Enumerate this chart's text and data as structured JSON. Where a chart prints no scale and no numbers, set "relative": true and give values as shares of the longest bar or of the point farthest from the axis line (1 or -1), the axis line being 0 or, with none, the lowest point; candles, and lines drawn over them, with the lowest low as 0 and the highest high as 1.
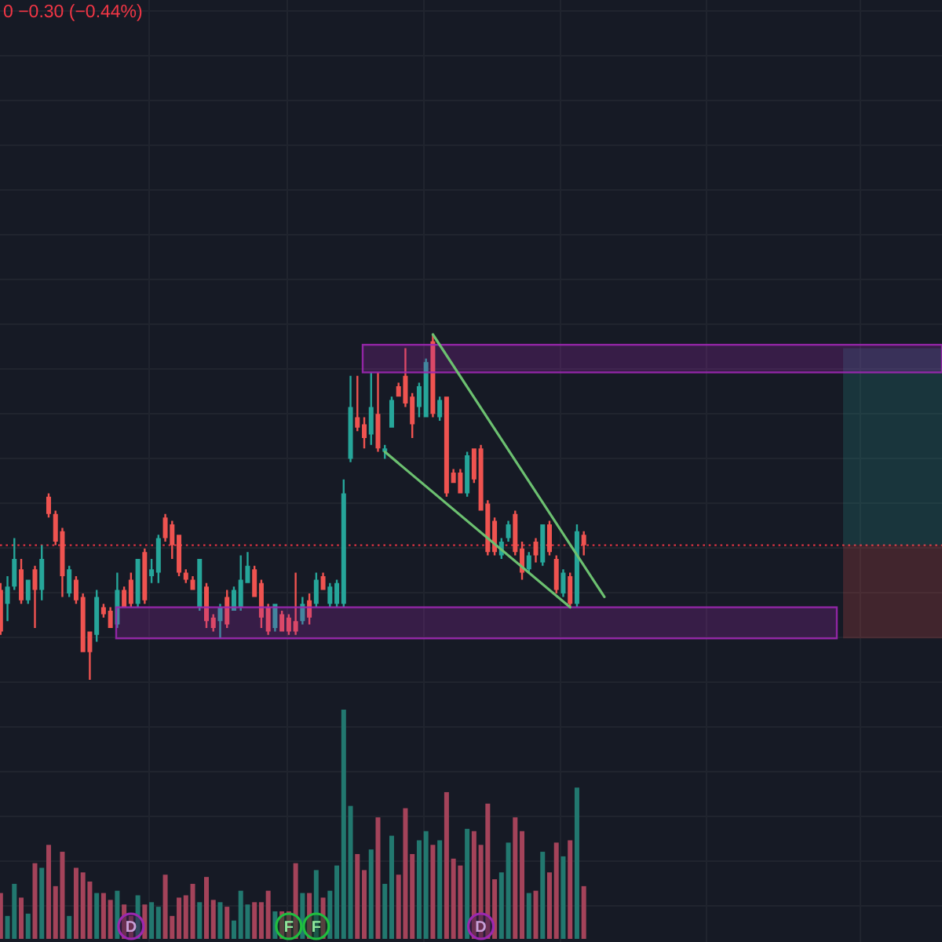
{
  "chart_data": [
    {
      "type": "candlestick",
      "title": "0 −0.30 (−0.44%)",
      "relative": true,
      "grid": true,
      "categories": [
        null,
        null,
        null,
        null,
        null,
        null,
        null,
        null,
        null,
        null,
        null,
        null,
        null,
        null,
        null,
        null,
        null,
        null,
        null,
        null,
        null,
        null,
        null,
        null,
        null,
        null,
        null,
        null,
        null,
        null,
        null,
        null,
        null,
        null,
        null,
        null,
        null,
        null,
        null,
        null,
        null,
        null,
        null,
        null,
        null,
        null,
        null,
        null,
        null,
        null,
        null,
        null,
        null,
        null,
        null,
        null,
        null,
        null,
        null,
        null,
        null,
        null,
        null,
        null,
        null,
        null,
        null,
        null,
        null,
        null,
        null,
        null,
        null,
        null,
        null,
        null,
        null,
        null,
        null,
        null,
        null,
        null,
        null,
        null,
        null,
        null,
        null,
        null,
        null,
        null,
        null,
        null,
        null,
        null,
        null,
        null,
        null,
        null,
        null,
        null,
        null,
        null,
        null,
        null,
        null,
        null,
        null,
        null,
        null,
        null,
        null,
        null,
        null,
        null,
        null,
        null,
        null,
        null,
        null,
        null,
        null,
        null,
        null,
        null,
        null,
        null,
        null,
        null,
        null,
        null,
        null,
        null,
        null,
        null,
        null,
        null,
        null,
        null
      ],
      "ohlc": [
        [
          0.26,
          0.28,
          0.13,
          0.14
        ],
        [
          0.22,
          0.3,
          0.17,
          0.27
        ],
        [
          0.27,
          0.41,
          0.26,
          0.35
        ],
        [
          0.32,
          0.35,
          0.22,
          0.23
        ],
        [
          0.23,
          0.29,
          0.22,
          0.29
        ],
        [
          0.32,
          0.33,
          0.15,
          0.26
        ],
        [
          0.26,
          0.39,
          0.23,
          0.35
        ],
        [
          0.53,
          0.54,
          0.47,
          0.48
        ],
        [
          0.48,
          0.49,
          0.39,
          0.4
        ],
        [
          0.43,
          0.44,
          0.24,
          0.3
        ],
        [
          0.25,
          0.33,
          0.24,
          0.32
        ],
        [
          0.29,
          0.3,
          0.22,
          0.23
        ],
        [
          0.24,
          0.25,
          0.08,
          0.08
        ],
        [
          0.14,
          0.14,
          0,
          0.08
        ],
        [
          0.13,
          0.26,
          0.11,
          0.24
        ],
        [
          0.21,
          0.22,
          0.18,
          0.19
        ],
        [
          0.2,
          0.21,
          0.15,
          0.15
        ],
        [
          0.16,
          0.31,
          0.15,
          0.26
        ],
        [
          0.26,
          0.27,
          0.21,
          0.21
        ],
        [
          0.29,
          0.31,
          0.21,
          0.22
        ],
        [
          0.22,
          0.35,
          0.21,
          0.35
        ],
        [
          0.37,
          0.38,
          0.22,
          0.23
        ],
        [
          0.3,
          0.35,
          0.28,
          0.32
        ],
        [
          0.31,
          0.42,
          0.28,
          0.41
        ],
        [
          0.47,
          0.48,
          0.4,
          0.41
        ],
        [
          0.45,
          0.46,
          0.35,
          0.39
        ],
        [
          0.42,
          0.42,
          0.3,
          0.31
        ],
        [
          0.31,
          0.32,
          0.28,
          0.29
        ],
        [
          0.29,
          0.3,
          0.26,
          0.26
        ],
        [
          0.21,
          0.35,
          0.2,
          0.35
        ],
        [
          0.27,
          0.28,
          0.15,
          0.17
        ],
        [
          0.18,
          0.19,
          0.14,
          0.15
        ],
        [
          0.17,
          0.22,
          0.12,
          0.21
        ],
        [
          0.24,
          0.26,
          0.15,
          0.16
        ],
        [
          0.2,
          0.27,
          0.2,
          0.26
        ],
        [
          0.21,
          0.36,
          0.2,
          0.29
        ],
        [
          0.28,
          0.37,
          0.28,
          0.33
        ],
        [
          0.32,
          0.33,
          0.24,
          0.24
        ],
        [
          0.28,
          0.29,
          0.15,
          0.18
        ],
        [
          0.21,
          0.22,
          0.13,
          0.14
        ],
        [
          0.15,
          0.22,
          0.14,
          0.22
        ],
        [
          0.19,
          0.2,
          0.14,
          0.14
        ],
        [
          0.18,
          0.19,
          0.13,
          0.14
        ],
        [
          0.17,
          0.31,
          0.13,
          0.14
        ],
        [
          0.17,
          0.24,
          0.16,
          0.22
        ],
        [
          0.23,
          0.25,
          0.16,
          0.18
        ],
        [
          0.22,
          0.31,
          0.21,
          0.29
        ],
        [
          0.3,
          0.31,
          0.26,
          0.26
        ],
        [
          0.22,
          0.28,
          0.21,
          0.27
        ],
        [
          0.22,
          0.29,
          0.21,
          0.28
        ],
        [
          0.22,
          0.58,
          0.21,
          0.54
        ],
        [
          0.64,
          0.88,
          0.63,
          0.79
        ],
        [
          0.76,
          0.88,
          0.72,
          0.73
        ],
        [
          0.74,
          0.76,
          0.67,
          0.7
        ],
        [
          0.71,
          0.89,
          0.68,
          0.79
        ],
        [
          0.77,
          0.89,
          0.66,
          0.67
        ],
        [
          0.66,
          0.68,
          0.64,
          0.67
        ],
        [
          0.73,
          0.82,
          0.73,
          0.81
        ],
        [
          0.85,
          0.86,
          0.82,
          0.82
        ],
        [
          0.88,
          0.96,
          0.79,
          0.8
        ],
        [
          0.82,
          0.83,
          0.7,
          0.74
        ],
        [
          0.79,
          0.86,
          0.76,
          0.85
        ],
        [
          0.76,
          0.93,
          0.76,
          0.92
        ],
        [
          0.98,
          1,
          0.76,
          0.77
        ],
        [
          0.76,
          0.82,
          0.75,
          0.81
        ],
        [
          0.82,
          0.82,
          0.53,
          0.54
        ],
        [
          0.6,
          0.61,
          0.57,
          0.57
        ],
        [
          0.6,
          0.61,
          0.54,
          0.54
        ],
        [
          0.54,
          0.66,
          0.53,
          0.65
        ],
        [
          0.67,
          0.67,
          0.57,
          0.58
        ],
        [
          0.67,
          0.68,
          0.49,
          0.49
        ],
        [
          0.51,
          0.52,
          0.36,
          0.37
        ],
        [
          0.46,
          0.47,
          0.36,
          0.37
        ],
        [
          0.36,
          0.41,
          0.35,
          0.4
        ],
        [
          0.41,
          0.46,
          0.4,
          0.45
        ],
        [
          0.48,
          0.49,
          0.36,
          0.37
        ],
        [
          0.38,
          0.4,
          0.29,
          0.31
        ],
        [
          0.32,
          0.37,
          0.31,
          0.36
        ],
        [
          0.4,
          0.41,
          0.34,
          0.36
        ],
        [
          0.34,
          0.45,
          0.33,
          0.45
        ],
        [
          0.45,
          0.46,
          0.36,
          0.37
        ],
        [
          0.35,
          0.36,
          0.25,
          0.26
        ],
        [
          0.25,
          0.32,
          0.24,
          0.31
        ],
        [
          0.3,
          0.31,
          0.21,
          0.22
        ],
        [
          0.22,
          0.45,
          0.21,
          0.43
        ],
        [
          0.42,
          0.43,
          0.36,
          0.39
        ],
        null,
        null,
        null,
        null,
        null,
        null,
        null,
        null,
        null,
        null,
        null,
        null,
        null,
        null,
        null,
        null,
        null,
        null,
        null,
        null,
        null,
        null,
        null,
        null,
        null,
        null,
        null,
        null,
        null,
        null,
        null,
        null,
        null,
        null,
        null,
        null,
        null,
        null,
        null,
        null,
        null,
        null,
        null,
        null,
        null,
        null,
        null,
        null,
        null,
        null,
        null,
        null
      ],
      "colors": [
        "#ef5350",
        "#26a69a",
        "#26a69a",
        "#ef5350",
        "#26a69a",
        "#ef5350",
        "#26a69a",
        "#ef5350",
        "#ef5350",
        "#ef5350",
        "#26a69a",
        "#ef5350",
        "#ef5350",
        "#ef5350",
        "#26a69a",
        "#ef5350",
        "#ef5350",
        "#26a69a",
        "#ef5350",
        "#ef5350",
        "#26a69a",
        "#ef5350",
        "#26a69a",
        "#26a69a",
        "#ef5350",
        "#ef5350",
        "#ef5350",
        "#ef5350",
        "#ef5350",
        "#26a69a",
        "#ef5350",
        "#ef5350",
        "#26a69a",
        "#ef5350",
        "#26a69a",
        "#26a69a",
        "#26a69a",
        "#ef5350",
        "#ef5350",
        "#ef5350",
        "#26a69a",
        "#ef5350",
        "#ef5350",
        "#ef5350",
        "#26a69a",
        "#ef5350",
        "#26a69a",
        "#ef5350",
        "#26a69a",
        "#26a69a",
        "#26a69a",
        "#26a69a",
        "#ef5350",
        "#ef5350",
        "#26a69a",
        "#ef5350",
        "#26a69a",
        "#26a69a",
        "#ef5350",
        "#ef5350",
        "#ef5350",
        "#26a69a",
        "#26a69a",
        "#ef5350",
        "#26a69a",
        "#ef5350",
        "#ef5350",
        "#ef5350",
        "#26a69a",
        "#ef5350",
        "#ef5350",
        "#ef5350",
        "#ef5350",
        "#26a69a",
        "#26a69a",
        "#ef5350",
        "#ef5350",
        "#26a69a",
        "#ef5350",
        "#26a69a",
        "#ef5350",
        "#ef5350",
        "#26a69a",
        "#ef5350",
        "#26a69a",
        "#ef5350",
        null,
        null,
        null,
        null,
        null,
        null,
        null,
        null,
        null,
        null,
        null,
        null,
        null,
        null,
        null,
        null,
        null,
        null,
        null,
        null,
        null,
        null,
        null,
        null,
        null,
        null,
        null,
        null,
        null,
        null,
        null,
        null,
        null,
        null,
        null,
        null,
        null,
        null,
        null,
        null,
        null,
        null,
        null,
        null,
        null,
        null,
        null,
        null,
        null,
        null,
        null,
        null
      ],
      "series": [
        {
          "type": "line",
          "color": "#6cc070",
          "values": [
            null,
            null,
            null,
            null,
            null,
            null,
            null,
            null,
            null,
            null,
            null,
            null,
            null,
            null,
            null,
            null,
            null,
            null,
            null,
            null,
            null,
            null,
            null,
            null,
            null,
            null,
            null,
            null,
            null,
            null,
            null,
            null,
            null,
            null,
            null,
            null,
            null,
            null,
            null,
            null,
            null,
            null,
            null,
            null,
            null,
            null,
            null,
            null,
            null,
            null,
            null,
            null,
            null,
            null,
            null,
            null,
            null,
            null,
            null,
            null,
            null,
            null,
            null,
            1,
            null,
            null,
            null,
            null,
            null,
            null,
            null,
            null,
            null,
            null,
            null,
            null,
            null,
            null,
            null,
            null,
            null,
            null,
            null,
            null,
            null,
            null,
            null,
            null,
            0.24,
            null,
            null,
            null,
            null,
            null,
            null,
            null,
            null,
            null,
            null,
            null,
            null,
            null,
            null,
            null,
            null,
            null,
            null,
            null,
            null,
            null,
            null,
            null,
            null,
            null,
            null,
            null,
            null,
            null,
            null,
            null,
            null,
            null,
            null,
            null,
            null,
            null,
            null,
            null,
            null,
            null,
            null,
            null,
            null,
            null,
            null,
            null,
            null,
            null
          ]
        },
        {
          "type": "line",
          "color": "#6cc070",
          "values": [
            null,
            null,
            null,
            null,
            null,
            null,
            null,
            null,
            null,
            null,
            null,
            null,
            null,
            null,
            null,
            null,
            null,
            null,
            null,
            null,
            null,
            null,
            null,
            null,
            null,
            null,
            null,
            null,
            null,
            null,
            null,
            null,
            null,
            null,
            null,
            null,
            null,
            null,
            null,
            null,
            null,
            null,
            null,
            null,
            null,
            null,
            null,
            null,
            null,
            null,
            null,
            null,
            null,
            null,
            null,
            null,
            0.66,
            null,
            null,
            null,
            null,
            null,
            null,
            null,
            null,
            null,
            null,
            null,
            null,
            null,
            null,
            null,
            null,
            null,
            null,
            null,
            null,
            null,
            null,
            null,
            null,
            null,
            null,
            0.21,
            null,
            null,
            null,
            null,
            null,
            null,
            null,
            null,
            null,
            null,
            null,
            null,
            null,
            null,
            null,
            null,
            null,
            null,
            null,
            null,
            null,
            null,
            null,
            null,
            null,
            null,
            null,
            null,
            null,
            null,
            null,
            null,
            null,
            null,
            null,
            null,
            null,
            null,
            null,
            null,
            null,
            null,
            null,
            null,
            null,
            null,
            null,
            null,
            null,
            null,
            null,
            null,
            null,
            null
          ]
        }
      ],
      "bands": [
        {
          "axis": "y",
          "from": 0.39,
          "to": 0.96,
          "color": "#26a69a"
        },
        {
          "axis": "y",
          "from": 0.12,
          "to": 0.39,
          "color": "#ef5350"
        },
        {
          "axis": "y",
          "from": 0.12,
          "to": 0.21,
          "color": "#9c27b0"
        },
        {
          "axis": "y",
          "from": 0.89,
          "to": 0.97,
          "color": "#9c27b0"
        }
      ],
      "ref_lines": [
        {
          "axis": "y",
          "value": 0.39,
          "color": "#f23645",
          "line_style": "dotted"
        }
      ]
    },
    {
      "type": "bar",
      "relative": true,
      "grid": true,
      "categories": [
        null,
        null,
        null,
        null,
        null,
        null,
        null,
        null,
        null,
        null,
        null,
        null,
        null,
        null,
        null,
        null,
        null,
        null,
        null,
        null,
        null,
        null,
        null,
        null,
        null,
        null,
        null,
        null,
        null,
        null,
        null,
        null,
        null,
        null,
        null,
        null,
        null,
        null,
        null,
        null,
        null,
        null,
        null,
        null,
        null,
        null,
        null,
        null,
        null,
        null,
        null,
        null,
        null,
        null,
        null,
        null,
        null,
        null,
        null,
        null,
        null,
        null,
        null,
        null,
        null,
        null,
        null,
        null,
        null,
        null,
        null,
        null,
        null,
        null,
        null,
        null,
        null,
        null,
        null,
        null,
        null,
        null,
        null,
        null,
        null,
        null
      ],
      "values": [
        0.2,
        0.1,
        0.24,
        0.18,
        0.11,
        0.33,
        0.31,
        0.41,
        0.23,
        0.38,
        0.1,
        0.31,
        0.29,
        0.25,
        0.2,
        0.2,
        0.17,
        0.21,
        0.15,
        0.1,
        0.19,
        0.15,
        0.16,
        0.14,
        0.28,
        0.1,
        0.18,
        0.19,
        0.24,
        0.16,
        0.27,
        0.17,
        0.16,
        0.14,
        0.08,
        0.21,
        0.15,
        0.16,
        0.16,
        0.21,
        0.12,
        0.12,
        0.12,
        0.33,
        0.2,
        0.2,
        0.3,
        0.18,
        0.21,
        0.32,
        1,
        0.58,
        0.37,
        0.3,
        0.39,
        0.53,
        0.24,
        0.45,
        0.28,
        0.57,
        0.37,
        0.43,
        0.47,
        0.41,
        0.43,
        0.64,
        0.35,
        0.32,
        0.48,
        0.47,
        0.41,
        0.59,
        0.26,
        0.29,
        0.42,
        0.53,
        0.47,
        0.2,
        0.21,
        0.38,
        0.29,
        0.42,
        0.36,
        0.43,
        0.66,
        0.23
      ],
      "colors": [
        "#a4435a",
        "#22786f",
        "#22786f",
        "#a4435a",
        "#22786f",
        "#a4435a",
        "#22786f",
        "#a4435a",
        "#a4435a",
        "#a4435a",
        "#22786f",
        "#a4435a",
        "#a4435a",
        "#a4435a",
        "#22786f",
        "#a4435a",
        "#a4435a",
        "#22786f",
        "#a4435a",
        "#a4435a",
        "#22786f",
        "#a4435a",
        "#22786f",
        "#22786f",
        "#a4435a",
        "#a4435a",
        "#a4435a",
        "#a4435a",
        "#a4435a",
        "#22786f",
        "#a4435a",
        "#a4435a",
        "#22786f",
        "#a4435a",
        "#22786f",
        "#22786f",
        "#22786f",
        "#a4435a",
        "#a4435a",
        "#a4435a",
        "#22786f",
        "#a4435a",
        "#a4435a",
        "#a4435a",
        "#22786f",
        "#a4435a",
        "#22786f",
        "#a4435a",
        "#22786f",
        "#22786f",
        "#22786f",
        "#22786f",
        "#a4435a",
        "#a4435a",
        "#22786f",
        "#a4435a",
        "#22786f",
        "#22786f",
        "#a4435a",
        "#a4435a",
        "#a4435a",
        "#22786f",
        "#22786f",
        "#a4435a",
        "#22786f",
        "#a4435a",
        "#a4435a",
        "#a4435a",
        "#22786f",
        "#a4435a",
        "#a4435a",
        "#a4435a",
        "#a4435a",
        "#22786f",
        "#22786f",
        "#a4435a",
        "#a4435a",
        "#22786f",
        "#a4435a",
        "#22786f",
        "#a4435a",
        "#a4435a",
        "#22786f",
        "#a4435a",
        "#22786f",
        "#a4435a"
      ],
      "annotations": [
        "D",
        "F",
        "F",
        "D"
      ]
    }
  ]
}
